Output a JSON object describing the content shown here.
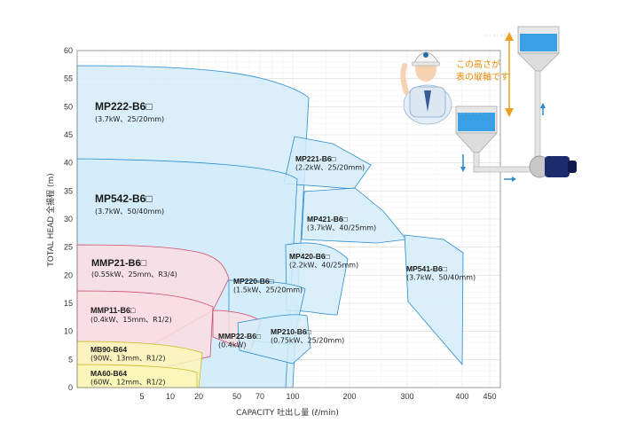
{
  "chart_data": {
    "type": "area",
    "xlabel": "CAPACITY 吐出し量 (ℓ/min)",
    "ylabel": "TOTAL HEAD 全揚程 (m)",
    "ylim": [
      0,
      60
    ],
    "x_ticks": [
      5,
      10,
      20,
      50,
      70,
      100,
      200,
      300,
      400,
      450
    ],
    "y_ticks": [
      0,
      5,
      10,
      15,
      20,
      25,
      30,
      35,
      40,
      45,
      50,
      55,
      60
    ],
    "grid": true,
    "annotation": "この高さが表の縦軸です",
    "regions": [
      {
        "name": "MP222-B6□",
        "spec": "(3.7kW、25/20mm)",
        "color": "#d4ecf9",
        "stroke": "#2a8bd0",
        "max_head": 57,
        "max_flow": 120
      },
      {
        "name": "MP221-B6□",
        "spec": "(2.2kW、25/20mm)",
        "color": "#d4ecf9",
        "stroke": "#2a8bd0",
        "max_head": 40.5,
        "max_flow": 110
      },
      {
        "name": "MP542-B6□",
        "spec": "(3.7kW、50/40mm)",
        "color": "#d4ecf9",
        "stroke": "#2a8bd0",
        "max_head": 44,
        "max_flow": 200
      },
      {
        "name": "MP421-B6□",
        "spec": "(3.7kW、40/25mm)",
        "color": "#d4ecf9",
        "stroke": "#2a8bd0",
        "max_head": 35,
        "max_flow": 300
      },
      {
        "name": "MP420-B6□",
        "spec": "(2.2kW、40/25mm)",
        "color": "#d4ecf9",
        "stroke": "#2a8bd0",
        "max_head": 26,
        "max_flow": 200
      },
      {
        "name": "MP541-B6□",
        "spec": "(3.7kW、50/40mm)",
        "color": "#d4ecf9",
        "stroke": "#2a8bd0",
        "max_head": 27,
        "max_flow": 400
      },
      {
        "name": "MMP21-B6□",
        "spec": "(0.55kW、25mm、R3/4)",
        "color": "#fbdde3",
        "stroke": "#d04a6a",
        "max_head": 25,
        "max_flow": 70
      },
      {
        "name": "MP220-B6□",
        "spec": "(1.5kW、25/20mm)",
        "color": "#d4ecf9",
        "stroke": "#2a8bd0",
        "max_head": 20,
        "max_flow": 150
      },
      {
        "name": "MMP11-B6□",
        "spec": "(0.4kW、15mm、R1/2)",
        "color": "#fbdde3",
        "stroke": "#d04a6a",
        "max_head": 17.5,
        "max_flow": 30
      },
      {
        "name": "MMP22-B6□",
        "spec": "(0.4kW)",
        "color": "#fbdde3",
        "stroke": "#d04a6a",
        "max_head": 14,
        "max_flow": 70
      },
      {
        "name": "MP210-B6□",
        "spec": "(0.75kW、25/20mm)",
        "color": "#d4ecf9",
        "stroke": "#2a8bd0",
        "max_head": 14,
        "max_flow": 110
      },
      {
        "name": "MB90-B64",
        "spec": "(90W、13mm、R1/2)",
        "color": "#fbf6b8",
        "stroke": "#c8b820",
        "max_head": 8,
        "max_flow": 20
      },
      {
        "name": "MA60-B64",
        "spec": "(60W、12mm、R1/2)",
        "color": "#fbf6b8",
        "stroke": "#c8b820",
        "max_head": 4,
        "max_flow": 20
      }
    ]
  }
}
